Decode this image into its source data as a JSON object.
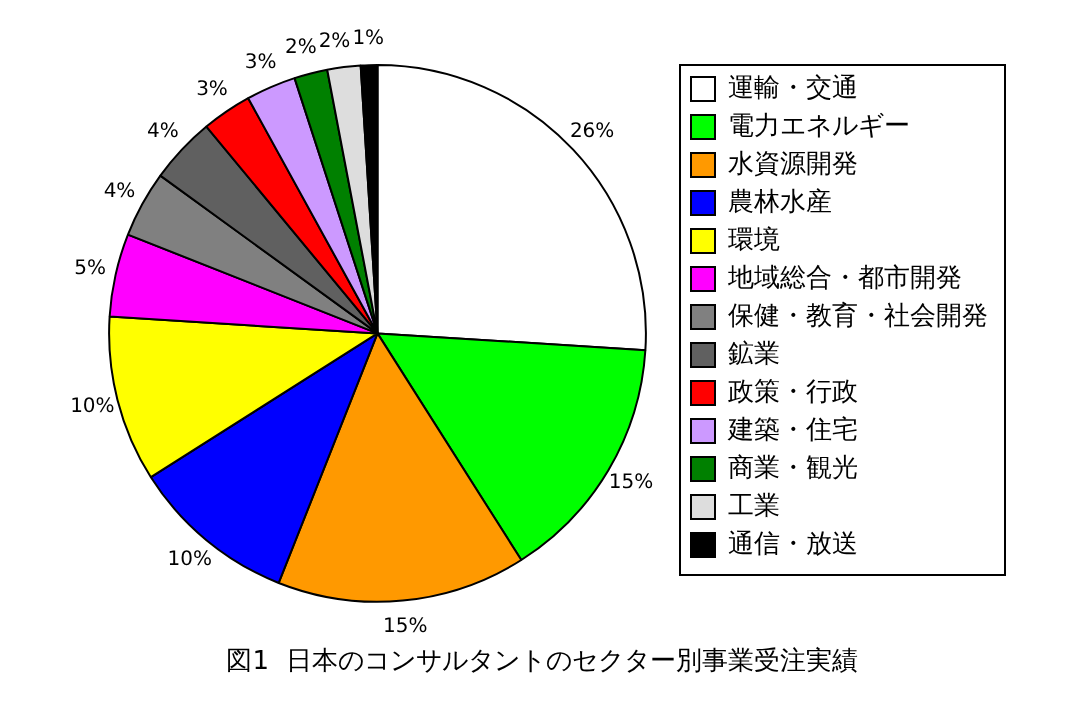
{
  "chart_data": {
    "type": "pie",
    "title": "図1  日本のコンサルタントのセクター別事業受注実績",
    "categories": [
      "運輸・交通",
      "電力エネルギー",
      "水資源開発",
      "農林水産",
      "環境",
      "地域総合・都市開発",
      "保健・教育・社会開発",
      "鉱業",
      "政策・行政",
      "建築・住宅",
      "商業・観光",
      "工業",
      "通信・放送"
    ],
    "values": [
      26,
      15,
      15,
      10,
      10,
      5,
      4,
      4,
      3,
      3,
      2,
      2,
      1
    ],
    "value_labels": [
      "26%",
      "15%",
      "15%",
      "10%",
      "10%",
      "5%",
      "4%",
      "4%",
      "3%",
      "3%",
      "2%",
      "2%",
      "1%"
    ],
    "colors": [
      "#ffffff",
      "#00ff00",
      "#ff9900",
      "#0000ff",
      "#ffff00",
      "#ff00ff",
      "#808080",
      "#606060",
      "#ff0000",
      "#cc99ff",
      "#008000",
      "#dddddd",
      "#000000"
    ],
    "legend": "right"
  }
}
